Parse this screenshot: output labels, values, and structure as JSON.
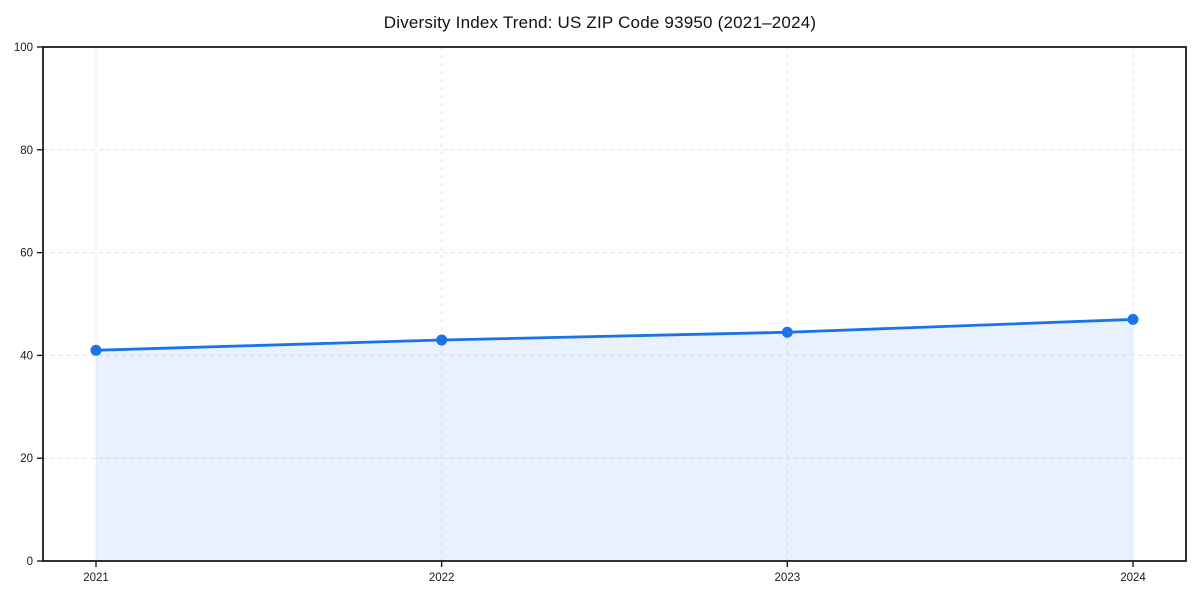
{
  "title": "Diversity Index Trend: US ZIP Code 93950 (2021–2024)",
  "chart_data": {
    "type": "area",
    "title": "Diversity Index Trend: US ZIP Code 93950 (2021–2024)",
    "x_labels": [
      "2021",
      "2022",
      "2023",
      "2024"
    ],
    "series": [
      {
        "name": "Diversity Index",
        "values": [
          41,
          43,
          44.5,
          47
        ]
      }
    ],
    "xlabel": "",
    "ylabel": "",
    "ylim": [
      0,
      100
    ],
    "y_ticks": [
      0,
      20,
      40,
      60,
      80,
      100
    ],
    "grid": true,
    "grid_style": "dashed",
    "legend_position": "none",
    "marker": "circle"
  },
  "colors": {
    "background": "#ffffff",
    "line": "#1a73e8",
    "marker": "#1a73e8",
    "fill": "#1a73e8",
    "fill_opacity": 0.1,
    "grid": "#e3e3e3",
    "spine": "#1c1c1c",
    "tick_text": "#1a1a1a",
    "title_text": "#111111"
  }
}
